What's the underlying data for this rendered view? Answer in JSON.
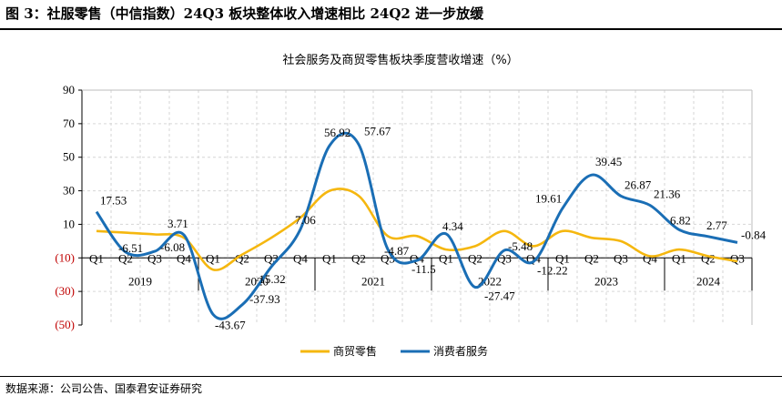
{
  "figure": {
    "caption": "图 3：社服零售（中信指数）24Q3 板块整体收入增速相比 24Q2 进一步放缓",
    "source": "数据来源：公司公告、国泰君安证券研究"
  },
  "chart_data": {
    "type": "line",
    "title": "社会服务及商贸零售板块季度营收增速（%）",
    "ylim": [
      -50,
      90
    ],
    "yticks": [
      -50,
      -30,
      -10,
      10,
      30,
      50,
      70,
      90
    ],
    "ytick_labels": [
      "(50)",
      "(30)",
      "(10)",
      "10",
      "30",
      "50",
      "70",
      "90"
    ],
    "categories": [
      "Q1",
      "Q2",
      "Q3",
      "Q4",
      "Q1",
      "Q2",
      "Q3",
      "Q4",
      "Q1",
      "Q2",
      "Q3",
      "Q4",
      "Q1",
      "Q2",
      "Q3",
      "Q4",
      "Q1",
      "Q2",
      "Q3",
      "Q4",
      "Q1",
      "Q2",
      "Q3"
    ],
    "years": [
      {
        "label": "2019",
        "quarters": 4
      },
      {
        "label": "2020",
        "quarters": 4
      },
      {
        "label": "2021",
        "quarters": 4
      },
      {
        "label": "2022",
        "quarters": 4
      },
      {
        "label": "2023",
        "quarters": 4
      },
      {
        "label": "2024",
        "quarters": 3
      }
    ],
    "series": [
      {
        "name": "商贸零售",
        "color": "#F5B70F",
        "values": [
          6,
          5,
          4,
          2,
          -17,
          -8,
          2,
          14,
          30,
          27,
          3,
          3,
          -5,
          -3,
          6,
          -3,
          6,
          2,
          0,
          -9,
          -5,
          -9,
          -12
        ]
      },
      {
        "name": "消费者服务",
        "color": "#1A6EB5",
        "values": [
          17.53,
          -6.51,
          -6.08,
          3.71,
          -43.67,
          -37.93,
          -15.32,
          7.06,
          56.92,
          57.67,
          -4.87,
          -11.5,
          4.34,
          -27.47,
          -5.48,
          -12.22,
          19.61,
          39.45,
          26.87,
          21.36,
          6.82,
          2.77,
          -0.84
        ]
      }
    ],
    "data_labels": [
      {
        "text": "17.53",
        "index": 0,
        "y": 17.53
      },
      {
        "text": "-6.51",
        "index": 1,
        "y": -6.51
      },
      {
        "text": "-6.08",
        "index": 2,
        "y": -6.08
      },
      {
        "text": "3.71",
        "index": 3,
        "y": 3.71
      },
      {
        "text": "-43.67",
        "index": 4,
        "y": -43.67
      },
      {
        "text": "-37.93",
        "index": 5,
        "y": -37.93
      },
      {
        "text": "-15.32",
        "index": 6,
        "y": -15.32
      },
      {
        "text": "7.06",
        "index": 7,
        "y": 7.06
      },
      {
        "text": "56.92",
        "index": 8,
        "y": 56.92
      },
      {
        "text": "57.67",
        "index": 9,
        "y": 57.67
      },
      {
        "text": "-4.87",
        "index": 10,
        "y": -4.87
      },
      {
        "text": "-11.5",
        "index": 11,
        "y": -11.5
      },
      {
        "text": "4.34",
        "index": 12,
        "y": 4.34
      },
      {
        "text": "-27.47",
        "index": 13,
        "y": -27.47
      },
      {
        "text": "-5.48",
        "index": 14,
        "y": -5.48
      },
      {
        "text": "-12.22",
        "index": 15,
        "y": -12.22
      },
      {
        "text": "19.61",
        "index": 16,
        "y": 19.61
      },
      {
        "text": "39.45",
        "index": 17,
        "y": 39.45
      },
      {
        "text": "26.87",
        "index": 18,
        "y": 26.87
      },
      {
        "text": "21.36",
        "index": 19,
        "y": 21.36
      },
      {
        "text": "6.82",
        "index": 20,
        "y": 6.82
      },
      {
        "text": "2.77",
        "index": 21,
        "y": 2.77
      },
      {
        "text": "-0.84",
        "index": 22,
        "y": -0.84
      }
    ],
    "negative_tick_color": "#C00000",
    "legend": {
      "position": "bottom"
    }
  }
}
